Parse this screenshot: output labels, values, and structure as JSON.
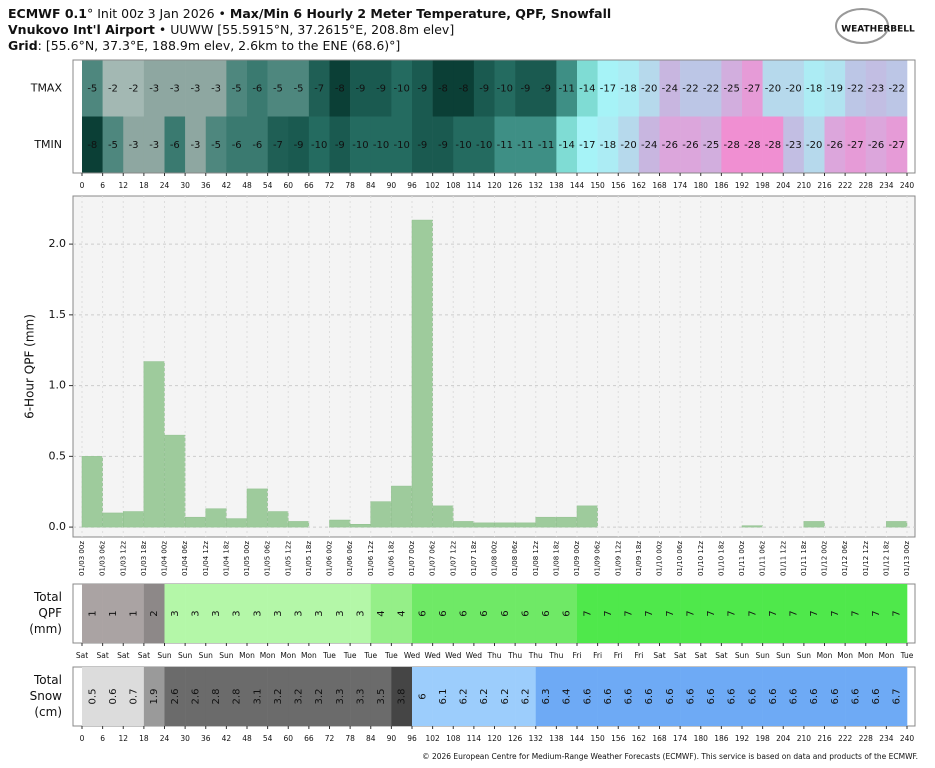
{
  "header": {
    "model": "ECMWF 0.1",
    "init": "° Init 00z 3 Jan 2026 •",
    "title": "Max/Min 6 Hourly 2 Meter Temperature,  QPF,  Snowfall",
    "station": "Vnukovo Int'l Airport",
    "station_info": "• UUWW [55.5915°N, 37.2615°E, 208.8m elev]",
    "grid_label": "Grid",
    "grid_info": ": [55.6°N, 37.3°E, 188.9m elev, 2.6km to the ENE (68.6)°]"
  },
  "logo": "WEATHERBELL",
  "footer": "© 2026 European Centre for Medium-Range Weather Forecasts (ECMWF). This service is based on data and products of the ECMWF.",
  "chart_data": [
    {
      "type": "heatmap",
      "xticks": [
        0,
        6,
        12,
        18,
        24,
        30,
        36,
        42,
        48,
        54,
        60,
        66,
        72,
        78,
        84,
        90,
        96,
        102,
        108,
        114,
        120,
        126,
        132,
        138,
        144,
        150,
        156,
        162,
        168,
        174,
        180,
        186,
        192,
        198,
        204,
        210,
        216,
        222,
        228,
        234,
        240
      ],
      "rows": [
        {
          "name": "TMAX",
          "values": [
            -5,
            -2,
            -2,
            -3,
            -3,
            -3,
            -3,
            -5,
            -6,
            -5,
            -5,
            -7,
            -8,
            -9,
            -9,
            -10,
            -9,
            -8,
            -8,
            -9,
            -10,
            -9,
            -9,
            -11,
            -14,
            -17,
            -18,
            -20,
            -24,
            -22,
            -22,
            -25,
            -27,
            -20,
            -20,
            -18,
            -19,
            -22,
            -23,
            -22
          ]
        },
        {
          "name": "TMIN",
          "values": [
            -8,
            -5,
            -3,
            -3,
            -6,
            -3,
            -5,
            -6,
            -6,
            -7,
            -9,
            -10,
            -9,
            -10,
            -10,
            -10,
            -9,
            -9,
            -10,
            -10,
            -11,
            -11,
            -11,
            -14,
            -17,
            -18,
            -20,
            -24,
            -26,
            -26,
            -25,
            -28,
            -28,
            -28,
            -23,
            -20,
            -26,
            -27,
            -26,
            -27
          ]
        }
      ]
    },
    {
      "type": "bar",
      "ylabel": "6-Hour QPF (mm)",
      "categories": [
        "01/03 00z",
        "01/03 06z",
        "01/03 12z",
        "01/03 18z",
        "01/04 00z",
        "01/04 06z",
        "01/04 12z",
        "01/04 18z",
        "01/05 00z",
        "01/05 06z",
        "01/05 12z",
        "01/05 18z",
        "01/06 00z",
        "01/06 06z",
        "01/06 12z",
        "01/06 18z",
        "01/07 00z",
        "01/07 06z",
        "01/07 12z",
        "01/07 18z",
        "01/08 00z",
        "01/08 06z",
        "01/08 12z",
        "01/08 18z",
        "01/09 00z",
        "01/09 06z",
        "01/09 12z",
        "01/09 18z",
        "01/10 00z",
        "01/10 06z",
        "01/10 12z",
        "01/10 18z",
        "01/11 00z",
        "01/11 06z",
        "01/11 12z",
        "01/11 18z",
        "01/12 00z",
        "01/12 06z",
        "01/12 12z",
        "01/12 18z",
        "01/13 00z"
      ],
      "values": [
        0.5,
        0.1,
        0.11,
        1.17,
        0.65,
        0.07,
        0.13,
        0.06,
        0.27,
        0.11,
        0.04,
        0,
        0.05,
        0.02,
        0.18,
        0.29,
        2.17,
        0.15,
        0.04,
        0.03,
        0.03,
        0.03,
        0.07,
        0.07,
        0.15,
        0,
        0,
        0,
        0,
        0,
        0,
        0,
        0.01,
        0,
        0,
        0.04,
        0,
        0,
        0,
        0.04,
        null
      ],
      "color": "#9ecb9c",
      "ylim": [
        -0.07,
        2.34
      ],
      "yticks": [
        {
          "value": 0,
          "label": "0.0"
        },
        {
          "value": 0.5,
          "label": "0.5"
        },
        {
          "value": 1,
          "label": "1.0"
        },
        {
          "value": 1.5,
          "label": "1.5"
        },
        {
          "value": 2,
          "label": "2.0"
        }
      ],
      "grid": true
    },
    {
      "type": "strip",
      "label": [
        "Total",
        "QPF",
        "(mm)"
      ],
      "xticklabels": [
        "Sat",
        "Sat",
        "Sat",
        "Sat",
        "Sun",
        "Sun",
        "Sun",
        "Sun",
        "Mon",
        "Mon",
        "Mon",
        "Mon",
        "Tue",
        "Tue",
        "Tue",
        "Tue",
        "Wed",
        "Wed",
        "Wed",
        "Wed",
        "Thu",
        "Thu",
        "Thu",
        "Thu",
        "Fri",
        "Fri",
        "Fri",
        "Fri",
        "Sat",
        "Sat",
        "Sat",
        "Sat",
        "Sun",
        "Sun",
        "Sun",
        "Sun",
        "Mon",
        "Mon",
        "Mon",
        "Mon",
        "Tue"
      ],
      "values": [
        1,
        1,
        1,
        2,
        3,
        3,
        3,
        3,
        3,
        3,
        3,
        3,
        3,
        3,
        4,
        4,
        6,
        6,
        6,
        6,
        6,
        6,
        6,
        6,
        7,
        7,
        7,
        7,
        7,
        7,
        7,
        7,
        7,
        7,
        7,
        7,
        7,
        7,
        7,
        7
      ]
    },
    {
      "type": "strip",
      "label": [
        "Total",
        "Snow",
        "(cm)"
      ],
      "xticklabels": [
        0,
        6,
        12,
        18,
        24,
        30,
        36,
        42,
        48,
        54,
        60,
        66,
        72,
        78,
        84,
        90,
        96,
        102,
        108,
        114,
        120,
        126,
        132,
        138,
        144,
        150,
        156,
        162,
        168,
        174,
        180,
        186,
        192,
        198,
        204,
        210,
        216,
        222,
        228,
        234,
        240
      ],
      "values": [
        0.5,
        0.6,
        0.7,
        1.9,
        2.6,
        2.6,
        2.8,
        2.8,
        3.1,
        3.2,
        3.2,
        3.2,
        3.3,
        3.3,
        3.5,
        3.8,
        6,
        6.1,
        6.2,
        6.2,
        6.2,
        6.2,
        6.3,
        6.4,
        6.6,
        6.6,
        6.6,
        6.6,
        6.6,
        6.6,
        6.6,
        6.6,
        6.6,
        6.6,
        6.6,
        6.6,
        6.6,
        6.6,
        6.6,
        6.7
      ]
    }
  ]
}
